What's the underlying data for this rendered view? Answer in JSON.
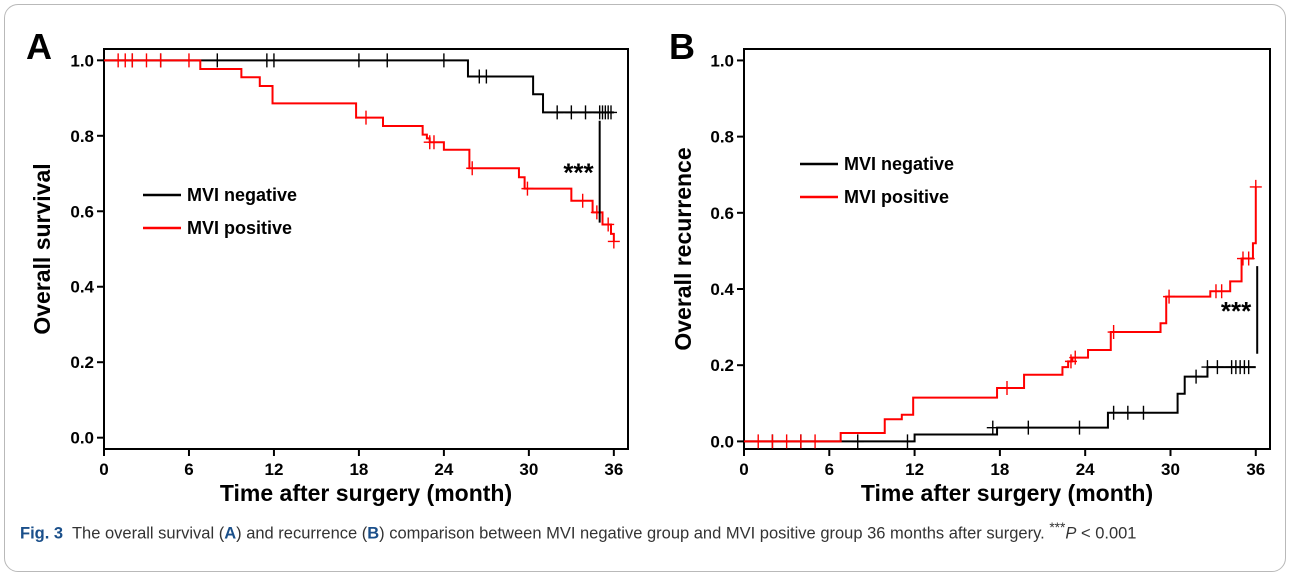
{
  "figure": {
    "caption_label": "Fig. 3",
    "caption_parts": [
      "The overall survival (",
      "A",
      ") and recurrence (",
      "B",
      ") comparison between MVI negative group and MVI positive group 36 months after surgery. ",
      "***",
      "P",
      " < 0.001"
    ]
  },
  "chart_data": [
    {
      "panel_label": "A",
      "type": "line",
      "step": true,
      "xlabel": "Time after surgery (month)",
      "ylabel": "Overall survival",
      "xlim": [
        0,
        37
      ],
      "ylim": [
        -0.03,
        1.03
      ],
      "xticks": [
        0,
        6,
        12,
        18,
        24,
        30,
        36
      ],
      "xtick_labels": [
        "0",
        "6",
        "12",
        "18",
        "24",
        "30",
        "36"
      ],
      "yticks": [
        0.0,
        0.2,
        0.4,
        0.6,
        0.8,
        1.0
      ],
      "ytick_labels": [
        "0.0",
        "0.2",
        "0.4",
        "0.6",
        "0.8",
        "1.0"
      ],
      "legend": {
        "position": "center-left",
        "entries": [
          "MVI negative",
          "MVI positive"
        ]
      },
      "series": [
        {
          "name": "MVI negative",
          "color": "#000000",
          "x": [
            0,
            25.7,
            30.3,
            31.0,
            36.0
          ],
          "y": [
            1.0,
            0.957,
            0.91,
            0.862,
            0.862
          ],
          "censor_x": [
            2,
            4,
            8,
            11.5,
            12,
            18,
            20,
            24,
            26.5,
            27,
            32,
            33,
            34,
            35,
            35.2,
            35.4,
            35.6,
            35.8
          ],
          "censor_y": [
            1.0,
            1.0,
            1.0,
            1.0,
            1.0,
            1.0,
            1.0,
            1.0,
            0.957,
            0.957,
            0.862,
            0.862,
            0.862,
            0.862,
            0.862,
            0.862,
            0.862,
            0.862
          ]
        },
        {
          "name": "MVI positive",
          "color": "#ff0000",
          "x": [
            0,
            6.8,
            9.7,
            11.0,
            11.9,
            17.8,
            19.7,
            22.5,
            22.8,
            23.0,
            24.0,
            25.8,
            29.3,
            29.7,
            33.0,
            34.5,
            35.2,
            35.8,
            36.0
          ],
          "y": [
            1.0,
            0.977,
            0.955,
            0.932,
            0.886,
            0.848,
            0.826,
            0.803,
            0.793,
            0.783,
            0.763,
            0.714,
            0.69,
            0.66,
            0.628,
            0.597,
            0.565,
            0.54,
            0.52
          ],
          "censor_x": [
            1,
            1.5,
            2,
            3,
            4,
            6,
            18.5,
            23,
            23.3,
            26,
            29.9,
            33.8,
            34.8,
            35.6,
            36.0
          ],
          "censor_y": [
            1.0,
            1.0,
            1.0,
            1.0,
            1.0,
            1.0,
            0.848,
            0.783,
            0.783,
            0.714,
            0.66,
            0.628,
            0.597,
            0.565,
            0.52
          ]
        }
      ],
      "annotation": {
        "text": "***",
        "x": 35.0,
        "y_range": [
          0.57,
          0.84
        ]
      }
    },
    {
      "panel_label": "B",
      "type": "line",
      "step": true,
      "xlabel": "Time after surgery (month)",
      "ylabel": "Overall recurrence",
      "xlim": [
        0,
        37
      ],
      "ylim": [
        -0.02,
        1.03
      ],
      "xticks": [
        0,
        6,
        12,
        18,
        24,
        30,
        36
      ],
      "xtick_labels": [
        "0",
        "6",
        "12",
        "18",
        "24",
        "30",
        "36"
      ],
      "yticks": [
        0.0,
        0.2,
        0.4,
        0.6,
        0.8,
        1.0
      ],
      "ytick_labels": [
        "0.0",
        "0.2",
        "0.4",
        "0.6",
        "0.8",
        "1.0"
      ],
      "legend": {
        "position": "upper-left",
        "entries": [
          "MVI negative",
          "MVI positive"
        ]
      },
      "series": [
        {
          "name": "MVI negative",
          "color": "#000000",
          "x": [
            0,
            6.8,
            12.0,
            17.8,
            25.6,
            30.5,
            31.0,
            32.6,
            36.0
          ],
          "y": [
            0.0,
            0.0,
            0.018,
            0.036,
            0.075,
            0.125,
            0.17,
            0.195,
            0.195
          ],
          "censor_x": [
            2,
            4,
            8,
            11.5,
            17.5,
            20,
            23.6,
            26,
            27,
            28.1,
            31.8,
            32.6,
            33.3,
            34.3,
            34.6,
            34.9,
            35.2,
            35.5
          ],
          "censor_y": [
            0.0,
            0.0,
            0.0,
            0.0,
            0.036,
            0.036,
            0.036,
            0.075,
            0.075,
            0.075,
            0.17,
            0.195,
            0.195,
            0.195,
            0.195,
            0.195,
            0.195,
            0.195
          ]
        },
        {
          "name": "MVI positive",
          "color": "#ff0000",
          "x": [
            0,
            6.8,
            9.9,
            11.1,
            11.9,
            17.8,
            19.7,
            22.4,
            22.8,
            23.1,
            24.2,
            25.8,
            29.3,
            29.7,
            32.8,
            34.2,
            35.0,
            35.8,
            36.0
          ],
          "y": [
            0.0,
            0.022,
            0.058,
            0.07,
            0.115,
            0.14,
            0.175,
            0.195,
            0.21,
            0.22,
            0.24,
            0.287,
            0.31,
            0.38,
            0.394,
            0.42,
            0.48,
            0.52,
            0.668
          ],
          "censor_x": [
            1,
            2,
            3,
            4,
            5,
            18.5,
            23,
            23.3,
            26,
            29.9,
            33.2,
            33.6,
            35.1,
            35.5,
            36.0
          ],
          "censor_y": [
            0.0,
            0.0,
            0.0,
            0.0,
            0.0,
            0.14,
            0.21,
            0.22,
            0.287,
            0.38,
            0.394,
            0.394,
            0.48,
            0.48,
            0.668
          ]
        }
      ],
      "annotation": {
        "text": "***",
        "x": 36.1,
        "y_range": [
          0.23,
          0.46
        ]
      }
    }
  ]
}
